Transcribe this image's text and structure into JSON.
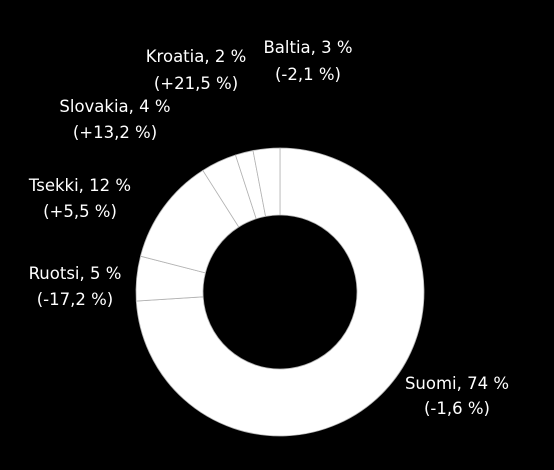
{
  "colors": {
    "background": "#000000",
    "slice_fill": "#ffffff",
    "slice_stroke": "#b3b3b3",
    "label_text": "#ffffff"
  },
  "chart_data": {
    "type": "donut",
    "slices": [
      {
        "name": "Suomi",
        "value": 74,
        "percent_label": "Suomi, 74 %",
        "change_label": "(-1,6 %)"
      },
      {
        "name": "Ruotsi",
        "value": 5,
        "percent_label": "Ruotsi, 5 %",
        "change_label": "(-17,2 %)"
      },
      {
        "name": "Tsekki",
        "value": 12,
        "percent_label": "Tsekki, 12 %",
        "change_label": "(+5,5 %)"
      },
      {
        "name": "Slovakia",
        "value": 4,
        "percent_label": "Slovakia, 4 %",
        "change_label": "(+13,2 %)"
      },
      {
        "name": "Kroatia",
        "value": 2,
        "percent_label": "Kroatia, 2 %",
        "change_label": "(+21,5 %)"
      },
      {
        "name": "Baltia",
        "value": 3,
        "percent_label": "Baltia, 3 %",
        "change_label": "(-2,1 %)"
      }
    ]
  }
}
